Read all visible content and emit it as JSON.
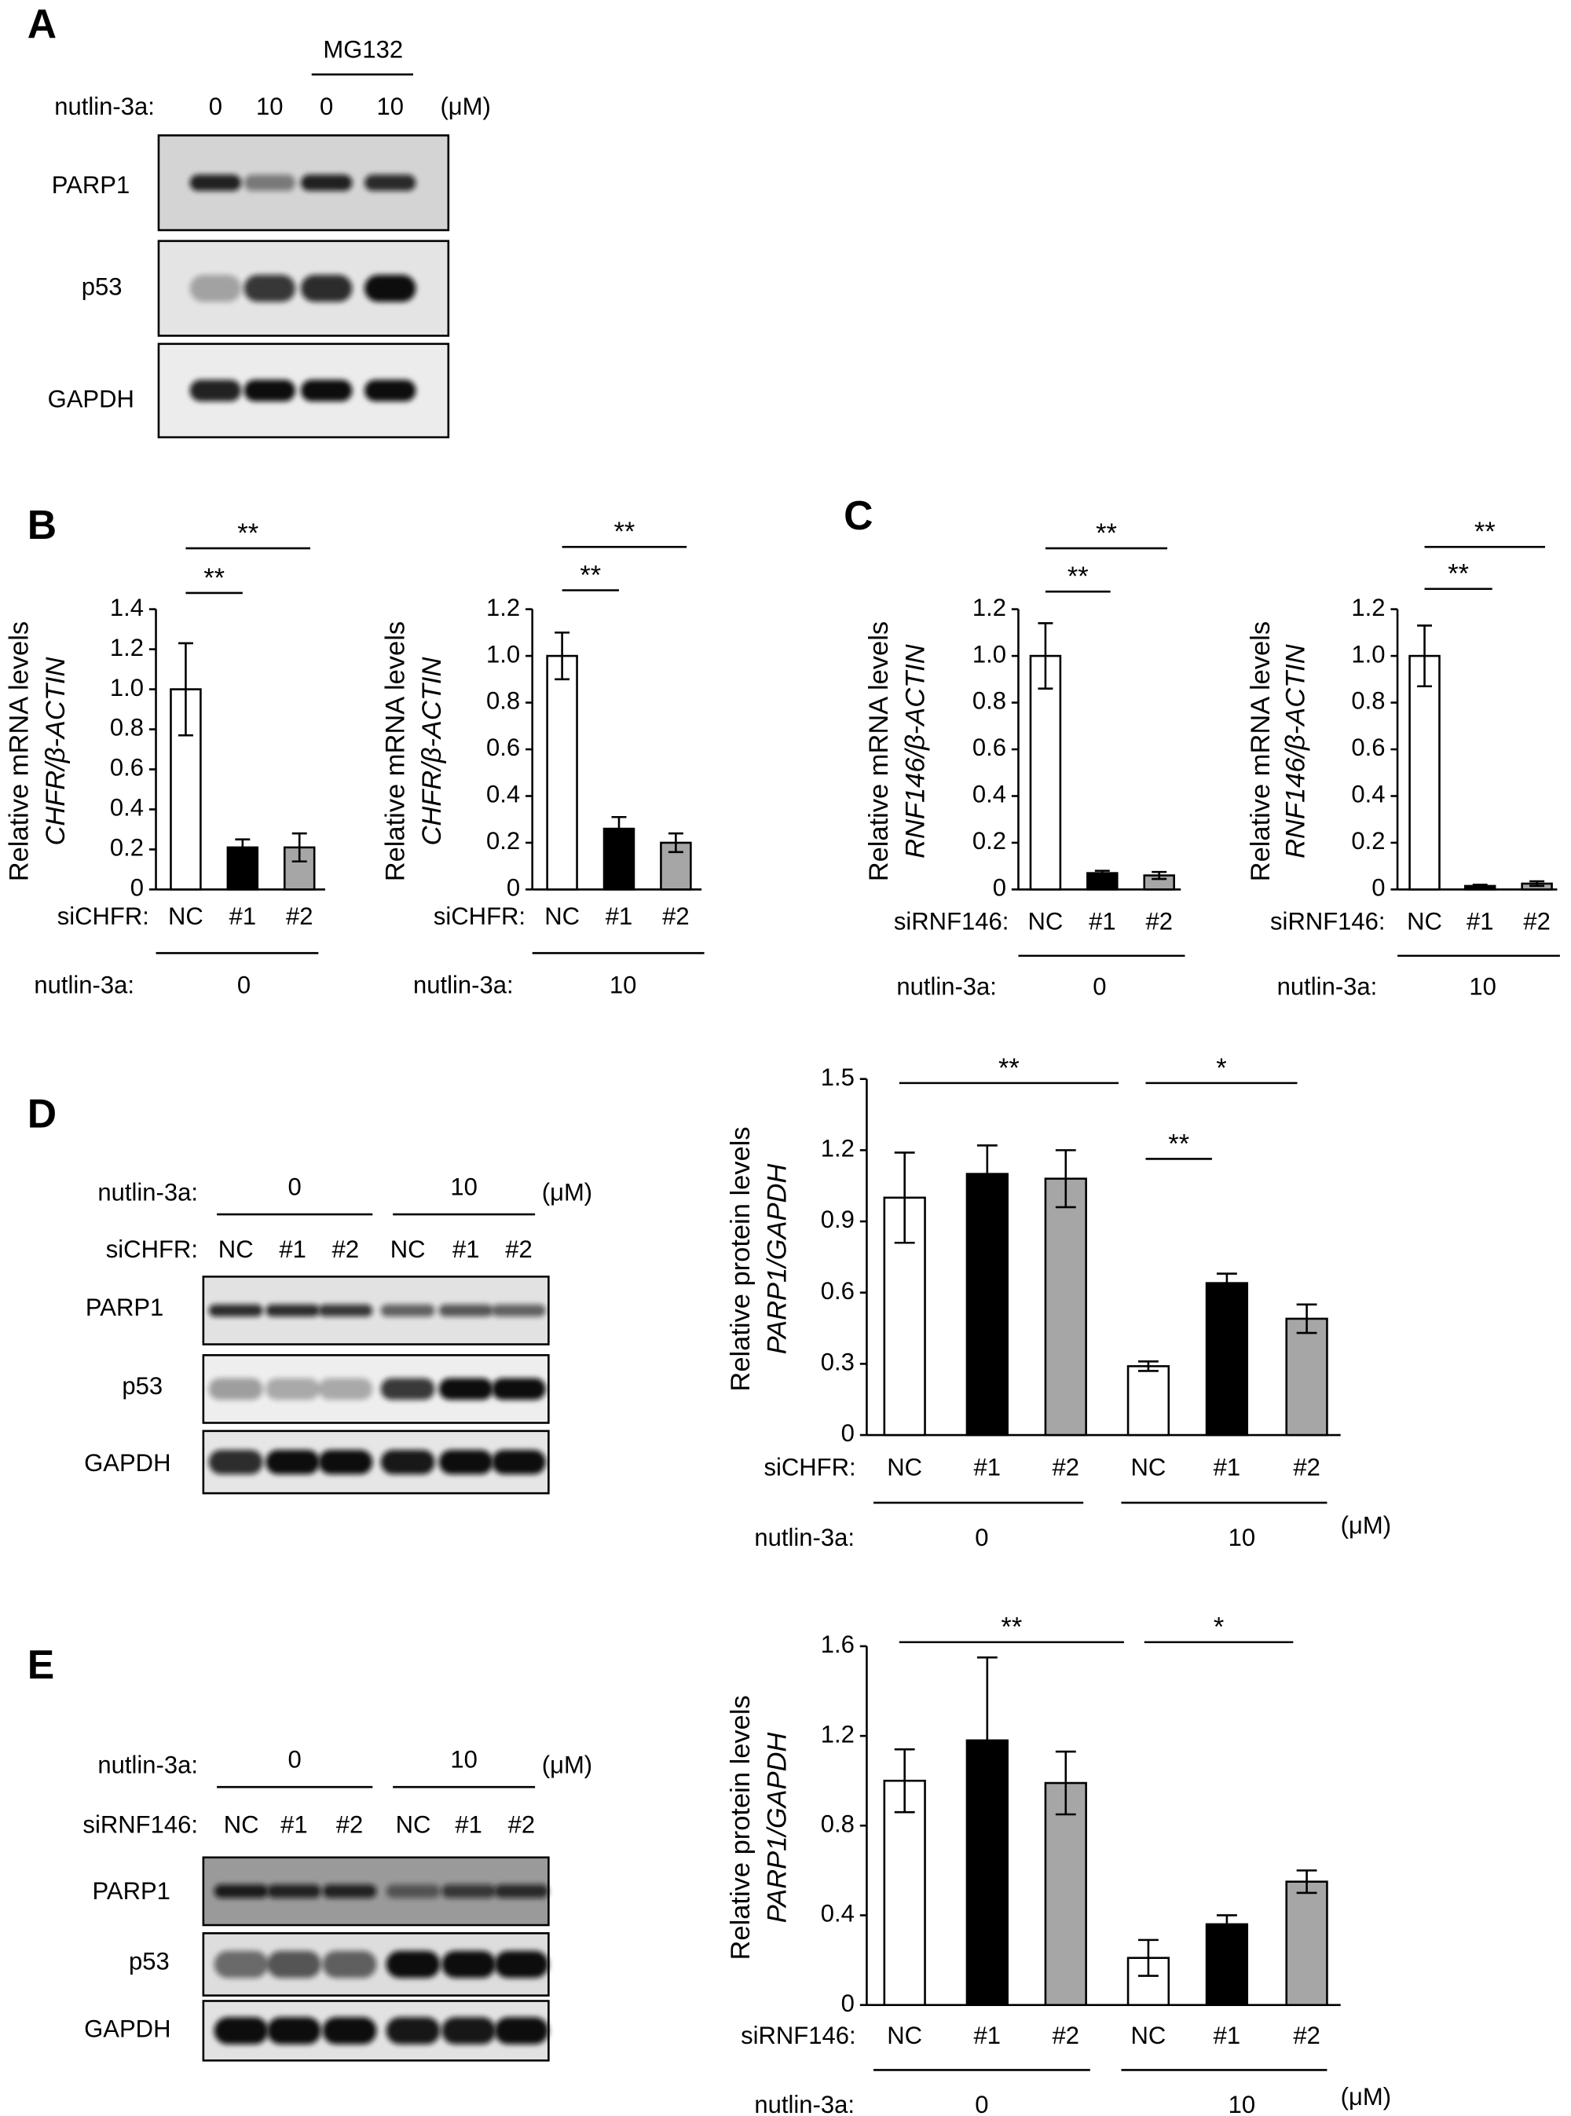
{
  "panel_labels": [
    "A",
    "B",
    "C",
    "D",
    "E"
  ],
  "blots": [
    {
      "treatment_label": "nutlin-3a:",
      "group": "MG132",
      "doses": [
        "0",
        "10",
        "0",
        "10"
      ],
      "unit": "(μM)",
      "rows": [
        "PARP1",
        "p53",
        "GAPDH"
      ]
    },
    {
      "treatment_label": "nutlin-3a:",
      "doses": [
        "0",
        "10"
      ],
      "unit": "(μM)",
      "sirna_label": "siCHFR:",
      "lanes": [
        "NC",
        "#1",
        "#2",
        "NC",
        "#1",
        "#2"
      ],
      "rows": [
        "PARP1",
        "p53",
        "GAPDH"
      ]
    },
    {
      "treatment_label": "nutlin-3a:",
      "doses": [
        "0",
        "10"
      ],
      "unit": "(μM)",
      "sirna_label": "siRNF146:",
      "lanes": [
        "NC",
        "#1",
        "#2",
        "NC",
        "#1",
        "#2"
      ],
      "rows": [
        "PARP1",
        "p53",
        "GAPDH"
      ]
    }
  ],
  "chart_data": [
    {
      "type": "bar",
      "y_label": [
        "Relative mRNA levels",
        "CHFR/β-ACTIN"
      ],
      "x_label": "siCHFR:",
      "categories": [
        "NC",
        "#1",
        "#2"
      ],
      "values": [
        1.0,
        0.21,
        0.21
      ],
      "errors": [
        0.23,
        0.04,
        0.07
      ],
      "colors": [
        "#ffffff",
        "#000000",
        "#a6a6a6"
      ],
      "ylim": [
        0,
        1.4
      ],
      "yticks": [
        0,
        0.2,
        0.4,
        0.6,
        0.8,
        {
          "value": 1,
          "label": "1.0"
        },
        1.2,
        1.4
      ],
      "group_label": "nutlin-3a:",
      "groups": [
        "0"
      ],
      "annotations": [
        "**",
        "**"
      ]
    },
    {
      "type": "bar",
      "y_label": [
        "Relative mRNA levels",
        "CHFR/β-ACTIN"
      ],
      "x_label": "siCHFR:",
      "categories": [
        "NC",
        "#1",
        "#2"
      ],
      "values": [
        1.0,
        0.26,
        0.2
      ],
      "errors": [
        0.1,
        0.05,
        0.04
      ],
      "colors": [
        "#ffffff",
        "#000000",
        "#a6a6a6"
      ],
      "ylim": [
        0,
        1.2
      ],
      "yticks": [
        0,
        0.2,
        0.4,
        0.6,
        0.8,
        {
          "value": 1,
          "label": "1.0"
        },
        1.2
      ],
      "group_label": "nutlin-3a:",
      "groups": [
        "10"
      ],
      "annotations": [
        "**",
        "**"
      ]
    },
    {
      "type": "bar",
      "y_label": [
        "Relative mRNA levels",
        "RNF146/β-ACTIN"
      ],
      "x_label": "siRNF146:",
      "categories": [
        "NC",
        "#1",
        "#2"
      ],
      "values": [
        1.0,
        0.07,
        0.06
      ],
      "errors": [
        0.14,
        0.01,
        0.015
      ],
      "colors": [
        "#ffffff",
        "#000000",
        "#a6a6a6"
      ],
      "ylim": [
        0,
        1.2
      ],
      "yticks": [
        0,
        0.2,
        0.4,
        0.6,
        0.8,
        {
          "value": 1,
          "label": "1.0"
        },
        1.2
      ],
      "group_label": "nutlin-3a:",
      "groups": [
        "0"
      ],
      "annotations": [
        "**",
        "**"
      ]
    },
    {
      "type": "bar",
      "y_label": [
        "Relative mRNA levels",
        "RNF146/β-ACTIN"
      ],
      "x_label": "siRNF146:",
      "categories": [
        "NC",
        "#1",
        "#2"
      ],
      "values": [
        1.0,
        0.015,
        0.025
      ],
      "errors": [
        0.13,
        0.005,
        0.01
      ],
      "colors": [
        "#ffffff",
        "#000000",
        "#a6a6a6"
      ],
      "ylim": [
        0,
        1.2
      ],
      "yticks": [
        0,
        0.2,
        0.4,
        0.6,
        0.8,
        {
          "value": 1,
          "label": "1.0"
        },
        1.2
      ],
      "group_label": "nutlin-3a:",
      "groups": [
        "10"
      ],
      "annotations": [
        "**",
        "**"
      ]
    },
    {
      "type": "bar",
      "y_label": [
        "Relative protein levels",
        "PARP1/GAPDH"
      ],
      "x_label": "siCHFR:",
      "categories": [
        "NC",
        "#1",
        "#2",
        "NC",
        "#1",
        "#2"
      ],
      "values": [
        1.0,
        1.1,
        1.08,
        0.29,
        0.64,
        0.49
      ],
      "errors": [
        0.19,
        0.12,
        0.12,
        0.02,
        0.04,
        0.06
      ],
      "colors": [
        "#ffffff",
        "#000000",
        "#a6a6a6",
        "#ffffff",
        "#000000",
        "#a6a6a6"
      ],
      "ylim": [
        0,
        1.5
      ],
      "yticks": [
        0,
        0.3,
        0.6,
        0.9,
        1.2,
        1.5
      ],
      "group_label": "nutlin-3a:",
      "groups": [
        "0",
        "10"
      ],
      "unit": "(μM)",
      "annotations": [
        "**",
        "*",
        "**"
      ]
    },
    {
      "type": "bar",
      "y_label": [
        "Relative protein levels",
        "PARP1/GAPDH"
      ],
      "x_label": "siRNF146:",
      "categories": [
        "NC",
        "#1",
        "#2",
        "NC",
        "#1",
        "#2"
      ],
      "values": [
        1.0,
        1.18,
        0.99,
        0.21,
        0.36,
        0.55
      ],
      "errors": [
        0.14,
        0.37,
        0.14,
        0.08,
        0.04,
        0.05
      ],
      "colors": [
        "#ffffff",
        "#000000",
        "#a6a6a6",
        "#ffffff",
        "#000000",
        "#a6a6a6"
      ],
      "ylim": [
        0,
        1.6
      ],
      "yticks": [
        0,
        0.4,
        0.8,
        1.2,
        1.6
      ],
      "group_label": "nutlin-3a:",
      "groups": [
        "0",
        "10"
      ],
      "unit": "(μM)",
      "annotations": [
        "**",
        "*"
      ]
    }
  ]
}
